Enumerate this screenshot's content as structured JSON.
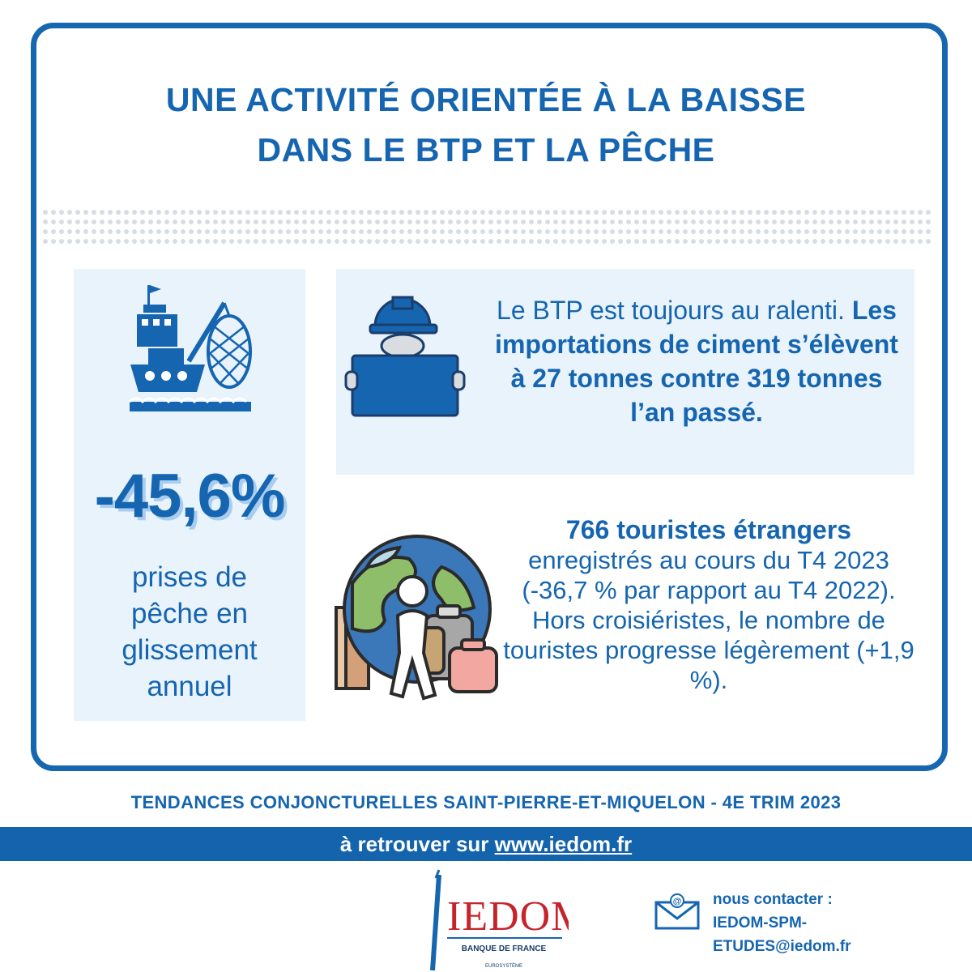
{
  "title": {
    "line1": "UNE ACTIVITÉ ORIENTÉE À LA BAISSE",
    "line2": "DANS LE BTP ET LA PÊCHE"
  },
  "fishing": {
    "value": "-45,6%",
    "label_line1": "prises de",
    "label_line2": "pêche en",
    "label_line3": "glissement",
    "label_line4": "annuel",
    "icon": "fishing-boat-icon"
  },
  "btp": {
    "text_regular": "Le BTP est toujours au ralenti. ",
    "text_bold": "Les importations de ciment s’élèvent à 27 tonnes contre 319 tonnes l’an passé.",
    "icon": "construction-worker-icon"
  },
  "tourism": {
    "text_bold": "766 touristes étrangers",
    "text_regular1": "enregistrés au cours du T4 2023 (-36,7 % par rapport au T4 2022).",
    "text_regular2": "Hors croisiéristes, le nombre de touristes progresse légèrement (+1,9 %).",
    "icon": "globe-traveler-icon"
  },
  "footer": {
    "title": "TENDANCES CONJONCTURELLES SAINT-PIERRE-ET-MIQUELON - 4E TRIM 2023",
    "band_text": "à retrouver sur ",
    "band_link": "www.iedom.fr",
    "logo_text": "IEDOM",
    "logo_sub": "BANQUE DE FRANCE",
    "logo_sub2": "EUROSYSTÈME",
    "contact_line1": "nous contacter :",
    "contact_line2": "IEDOM-SPM-",
    "contact_line3": "ETUDES@iedom.fr"
  },
  "colors": {
    "primary": "#1565b0",
    "panel": "#e9f3fc",
    "band": "#1363ad"
  }
}
